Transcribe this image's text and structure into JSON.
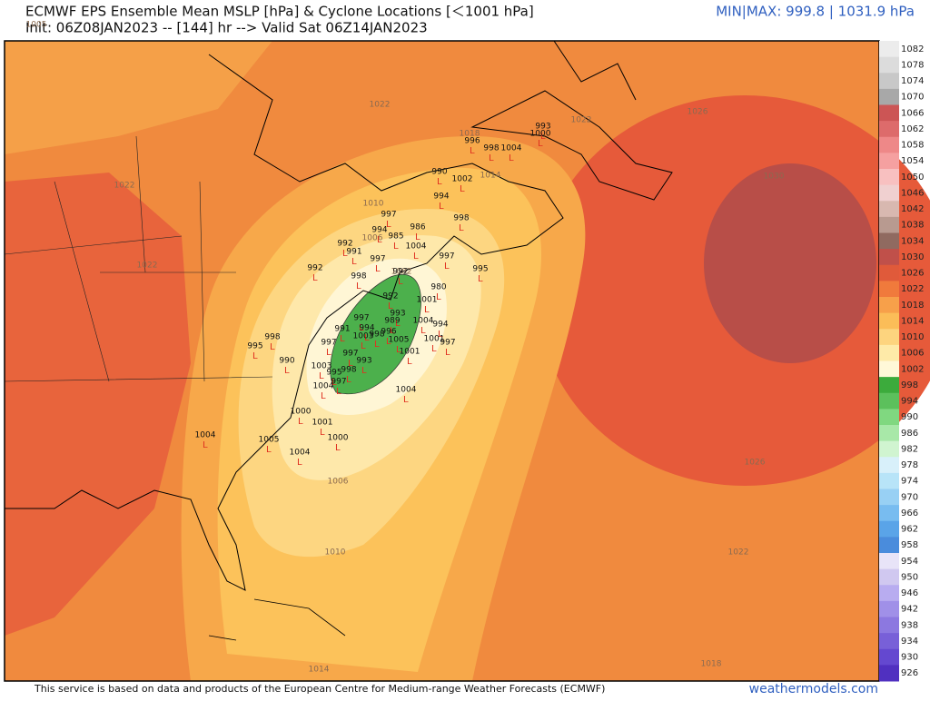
{
  "header": {
    "title": "ECMWF EPS Ensemble Mean MSLP [hPa] & Cyclone Locations [＜1001 hPa]",
    "init": "Init: 06Z08JAN2023 -- [144] hr --> Valid Sat 06Z14JAN2023",
    "minmax": "MIN|MAX: 999.8 | 1031.9 hPa"
  },
  "colorbar": {
    "labels": [
      1082,
      1078,
      1074,
      1070,
      1066,
      1062,
      1058,
      1054,
      1050,
      1046,
      1042,
      1038,
      1034,
      1030,
      1026,
      1022,
      1018,
      1014,
      1010,
      1006,
      1002,
      998,
      994,
      990,
      986,
      982,
      978,
      974,
      970,
      966,
      962,
      958,
      954,
      950,
      946,
      942,
      938,
      934,
      930,
      926
    ],
    "colors": [
      "#ececec",
      "#dcdcdc",
      "#c8c8c8",
      "#a8a8a8",
      "#cc5555",
      "#dd6b6b",
      "#ee8888",
      "#f5a0a0",
      "#f8c0c0",
      "#f0d0d0",
      "#d8b8b0",
      "#b89a90",
      "#906a60",
      "#c0504a",
      "#e05a3a",
      "#f07a3c",
      "#f7a04a",
      "#fbbd58",
      "#fdd47e",
      "#feeaa8",
      "#fff8d8",
      "#3cab3c",
      "#5cc05c",
      "#80d880",
      "#a8e8a8",
      "#d0f4d0",
      "#d8f0fa",
      "#b8e4f8",
      "#98d0f4",
      "#78bcf0",
      "#5aa4e8",
      "#4a8cdc",
      "#e8e4f8",
      "#d0c8f0",
      "#b8acf0",
      "#a090e8",
      "#8c78e0",
      "#7860d8",
      "#6448d0",
      "#5030c0"
    ]
  },
  "contours": [
    1022,
    1022,
    1022,
    1022,
    1026,
    1030,
    1026,
    1022,
    1018,
    1014,
    1010,
    1006,
    1018,
    1014,
    1010,
    1006,
    1002,
    1005
  ],
  "cyclones": {
    "marker": "L",
    "pressures": [
      993,
      1000,
      996,
      998,
      1004,
      990,
      1002,
      994,
      997,
      998,
      986,
      994,
      985,
      992,
      991,
      1004,
      997,
      997,
      992,
      995,
      998,
      992,
      980,
      992,
      1001,
      997,
      993,
      989,
      1004,
      994,
      991,
      994,
      998,
      996,
      1005,
      1003,
      1001,
      997,
      997,
      995,
      998,
      997,
      1001,
      993,
      990,
      1003,
      995,
      998,
      997,
      1004,
      1004,
      1000,
      1001,
      1000,
      1004,
      1005,
      1004
    ]
  },
  "footer": {
    "credit": "This service is based on data and products of the European Centre for Medium-range Weather Forecasts (ECMWF)",
    "site": "weathermodels.com"
  }
}
